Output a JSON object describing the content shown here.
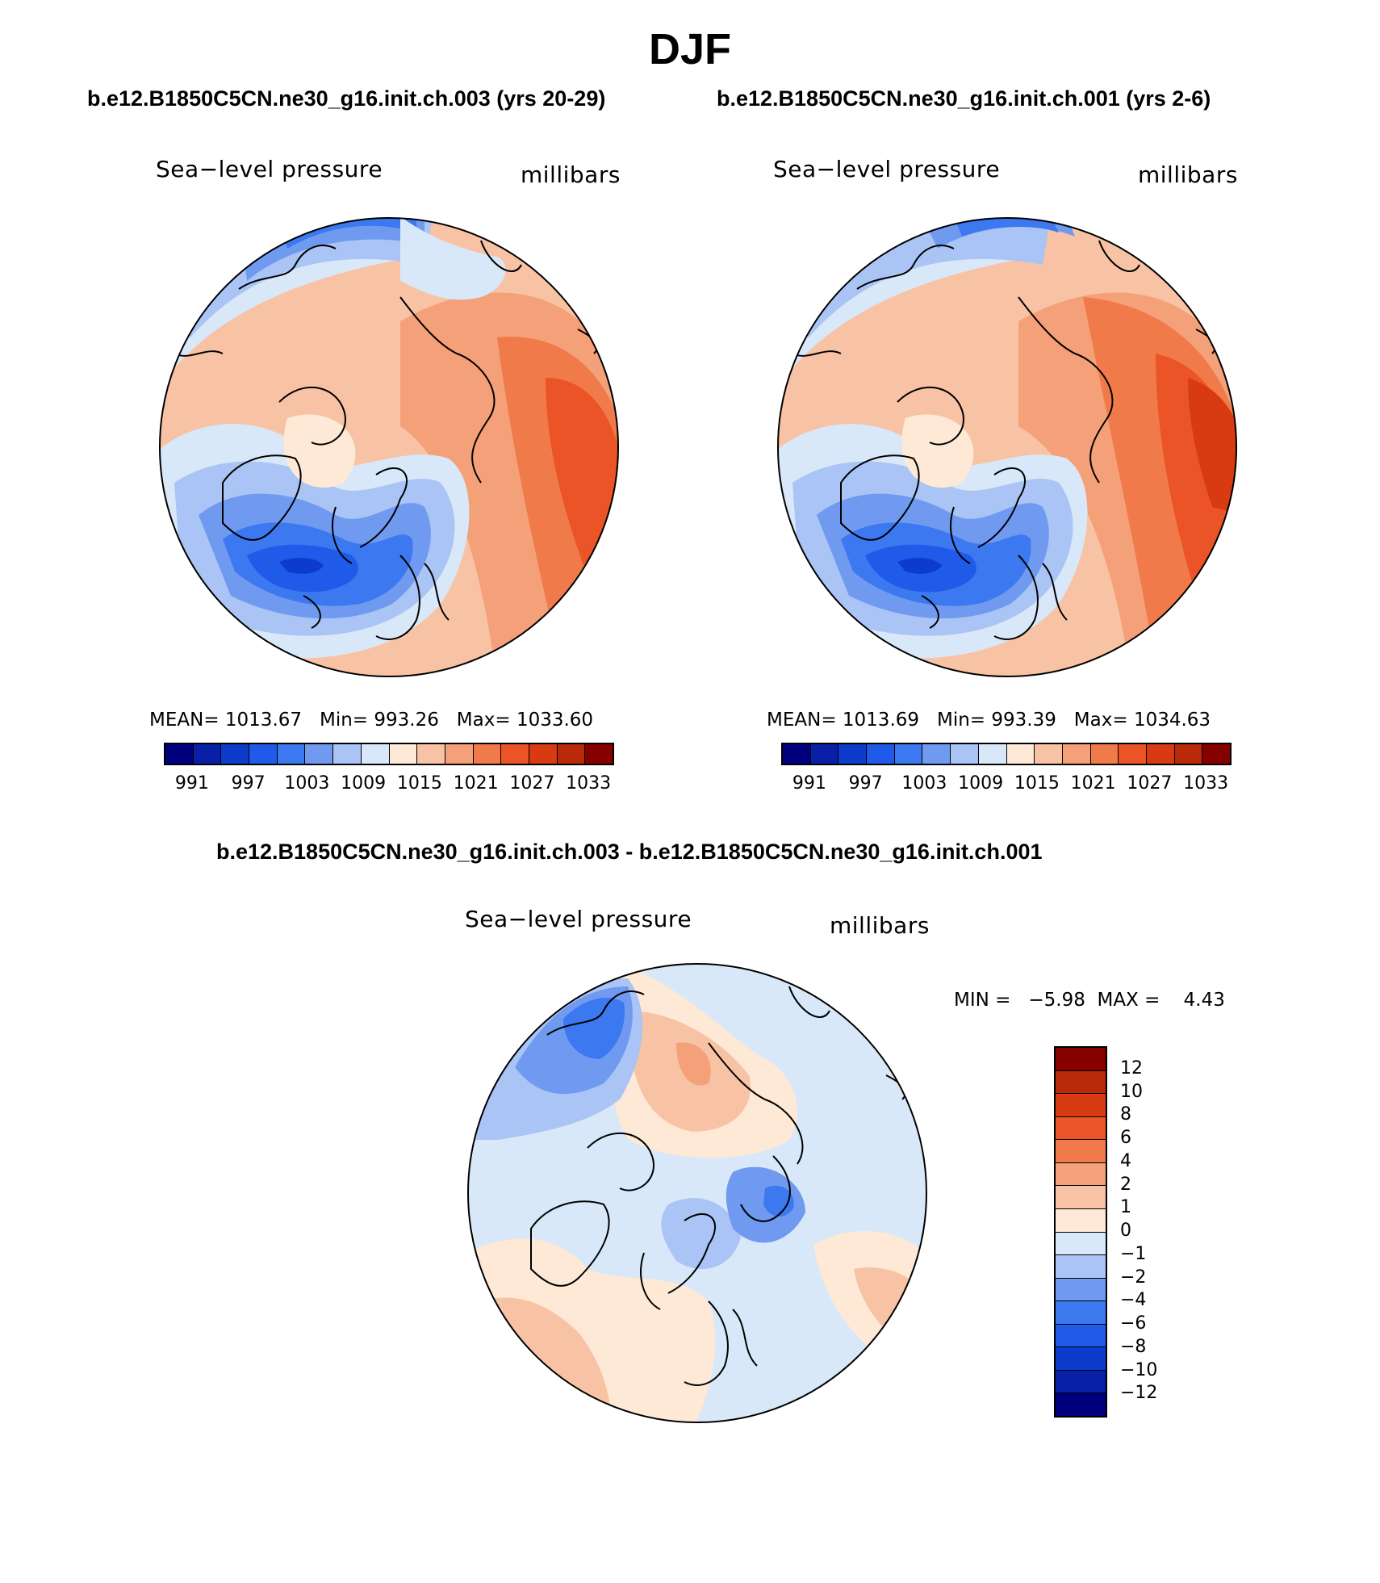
{
  "figure": {
    "title": "DJF",
    "left_subtitle": "b.e12.B1850C5CN.ne30_g16.init.ch.003 (yrs 20-29)",
    "right_subtitle": "b.e12.B1850C5CN.ne30_g16.init.ch.001 (yrs 2-6)",
    "diff_subtitle": "b.e12.B1850C5CN.ne30_g16.init.ch.003 - b.e12.B1850C5CN.ne30_g16.init.ch.001"
  },
  "panels": {
    "left": {
      "variable": "Sea−level pressure",
      "units": "millibars",
      "mean_label": "MEAN=",
      "mean": "1013.67",
      "min_label": "Min=",
      "min": "993.26",
      "max_label": "Max=",
      "max": "1033.60"
    },
    "right": {
      "variable": "Sea−level pressure",
      "units": "millibars",
      "mean_label": "MEAN=",
      "mean": "1013.69",
      "min_label": "Min=",
      "min": "993.39",
      "max_label": "Max=",
      "max": "1034.63"
    },
    "diff": {
      "variable": "Sea−level pressure",
      "units": "millibars",
      "min_label": "MIN =",
      "min": "−5.98",
      "max_label": "MAX =",
      "max": "4.43"
    }
  },
  "colorbars": {
    "abs_ticks": [
      "991",
      "997",
      "1003",
      "1009",
      "1015",
      "1021",
      "1027",
      "1033"
    ],
    "abs_colors": [
      "#00007f",
      "#0a1fa8",
      "#0d3ccc",
      "#1f5ae8",
      "#3c78f0",
      "#6f9af0",
      "#a9c4f5",
      "#d8e8f8",
      "#fde9d6",
      "#f8c3a4",
      "#f4a078",
      "#f07a4a",
      "#ea5426",
      "#d83a12",
      "#b82a08",
      "#860000"
    ],
    "diff_ticks": [
      "12",
      "10",
      "8",
      "6",
      "4",
      "2",
      "1",
      "0",
      "−1",
      "−2",
      "−4",
      "−6",
      "−8",
      "−10",
      "−12"
    ],
    "diff_colors": [
      "#860000",
      "#b82a08",
      "#d83a12",
      "#ea5426",
      "#f07a4a",
      "#f4a078",
      "#f8c3a4",
      "#fde9d6",
      "#d8e8f8",
      "#a9c4f5",
      "#6f9af0",
      "#3c78f0",
      "#1f5ae8",
      "#0d3ccc",
      "#0a1fa8",
      "#00007f"
    ]
  }
}
